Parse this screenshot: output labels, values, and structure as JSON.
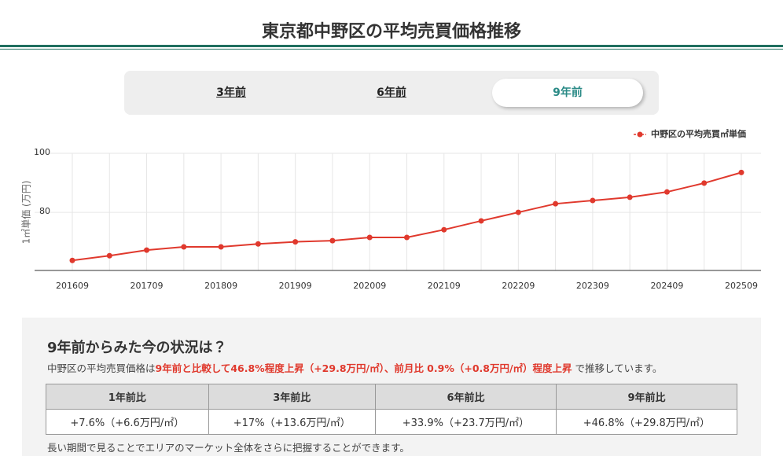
{
  "header": {
    "title": "東京都中野区の平均売買価格推移"
  },
  "tabs": [
    "3年前",
    "6年前",
    "9年前"
  ],
  "active_tab": 2,
  "chart_data": {
    "type": "line",
    "categories": [
      "201609",
      null,
      "201709",
      null,
      "201809",
      null,
      "201909",
      null,
      "202009",
      null,
      "202109",
      null,
      "202209",
      null,
      "202309",
      null,
      "202409",
      null,
      "202509"
    ],
    "series": [
      {
        "name": "中野区の平均売買㎡単価",
        "color": "#e0392d",
        "values": [
          63.7,
          65.3,
          67.2,
          68.3,
          68.3,
          69.3,
          70.0,
          70.4,
          71.5,
          71.5,
          74.1,
          77.1,
          80.0,
          82.9,
          84.0,
          85.1,
          86.9,
          89.9,
          93.5
        ]
      }
    ],
    "ylim": [
      60.3,
      100
    ],
    "yticks": [
      80,
      100
    ],
    "ylabel": "1㎡単価 (万円)",
    "grid": true,
    "legend": "top-right"
  },
  "summary": {
    "heading": "9年前からみた今の状況は？",
    "text": [
      {
        "text": "中野区の平均売買価格は"
      },
      {
        "text": "9年前と比較して46.8%程度上昇（+29.8万円/㎡）、前月比 0.9%（+0.8万円/㎡）程度上昇",
        "highlight": true
      },
      {
        "text": " で推移しています。"
      }
    ],
    "table": {
      "columns": [
        "1年前比",
        "3年前比",
        "6年前比",
        "9年前比"
      ],
      "rows": [
        [
          "+7.6%（+6.6万円/㎡）",
          "+17%（+13.6万円/㎡）",
          "+33.9%（+23.7万円/㎡）",
          "+46.8%（+29.8万円/㎡）"
        ]
      ]
    },
    "note": "長い期間で見ることでエリアのマーケット全体をさらに把握することができます。"
  }
}
